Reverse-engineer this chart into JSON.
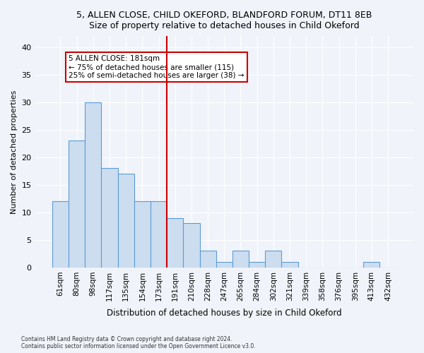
{
  "title1": "5, ALLEN CLOSE, CHILD OKEFORD, BLANDFORD FORUM, DT11 8EB",
  "title2": "Size of property relative to detached houses in Child Okeford",
  "xlabel": "Distribution of detached houses by size in Child Okeford",
  "ylabel": "Number of detached properties",
  "categories": [
    "61sqm",
    "80sqm",
    "98sqm",
    "117sqm",
    "135sqm",
    "154sqm",
    "173sqm",
    "191sqm",
    "210sqm",
    "228sqm",
    "247sqm",
    "265sqm",
    "284sqm",
    "302sqm",
    "321sqm",
    "339sqm",
    "358sqm",
    "376sqm",
    "395sqm",
    "413sqm",
    "432sqm"
  ],
  "values": [
    12,
    23,
    30,
    18,
    17,
    12,
    12,
    9,
    8,
    3,
    1,
    3,
    1,
    3,
    1,
    0,
    0,
    0,
    0,
    1,
    0
  ],
  "bar_color": "#ccddf0",
  "bar_edge_color": "#5b9bd5",
  "vline_x": 6.5,
  "vline_color": "#cc0000",
  "annotation_text": "5 ALLEN CLOSE: 181sqm\n← 75% of detached houses are smaller (115)\n25% of semi-detached houses are larger (38) →",
  "annotation_box_color": "#ffffff",
  "annotation_box_edge": "#cc0000",
  "ylim": [
    0,
    42
  ],
  "yticks": [
    0,
    5,
    10,
    15,
    20,
    25,
    30,
    35,
    40
  ],
  "footnote": "Contains HM Land Registry data © Crown copyright and database right 2024.\nContains public sector information licensed under the Open Government Licence v3.0.",
  "bg_color": "#f0f4fa",
  "plot_bg_color": "#f0f4fa"
}
